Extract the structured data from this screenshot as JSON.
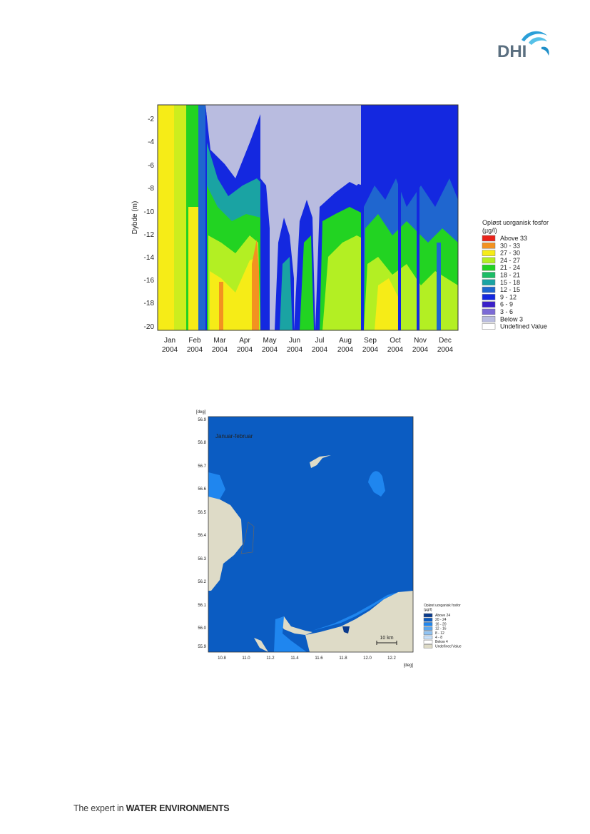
{
  "logo": {
    "text": "DHI"
  },
  "footer": {
    "prefix": "The expert in",
    "emphasis": "WATER ENVIRONMENTS"
  },
  "figure1": {
    "ylabel": "Dybde (m)",
    "yticks": [
      "-2",
      "-4",
      "-6",
      "-8",
      "-10",
      "-12",
      "-14",
      "-16",
      "-18",
      "-20"
    ],
    "months": [
      "Jan",
      "Feb",
      "Mar",
      "Apr",
      "May",
      "Jun",
      "Jul",
      "Aug",
      "Sep",
      "Oct",
      "Nov",
      "Dec"
    ],
    "year": "2004",
    "legend": {
      "title_line1": "Opløst uorganisk fosfor",
      "title_line2": "(µg/l)",
      "items": [
        {
          "label": "Above 33",
          "color": "#e8231b"
        },
        {
          "label": "30 - 33",
          "color": "#f39220"
        },
        {
          "label": "27 - 30",
          "color": "#f6ec17"
        },
        {
          "label": "24 - 27",
          "color": "#b3ef23"
        },
        {
          "label": "21 - 24",
          "color": "#22d322"
        },
        {
          "label": "18 - 21",
          "color": "#1cbd66"
        },
        {
          "label": "15 - 18",
          "color": "#1aa3a3"
        },
        {
          "label": "12 - 15",
          "color": "#1f66cf"
        },
        {
          "label": "9 - 12",
          "color": "#1428e0"
        },
        {
          "label": "6 - 9",
          "color": "#3a20c8"
        },
        {
          "label": "3 - 6",
          "color": "#7b6ad6"
        },
        {
          "label": "Below 3",
          "color": "#b9bce0"
        },
        {
          "label": "Undefined Value",
          "color": "#ffffff"
        }
      ]
    }
  },
  "figure2": {
    "title": "Januar-februar",
    "unit_top": "[deg]",
    "unit_bottom": "[deg]",
    "yticks": [
      "56.9",
      "56.8",
      "56.7",
      "56.6",
      "56.5",
      "56.4",
      "56.3",
      "56.2",
      "56.1",
      "56.0",
      "55.9"
    ],
    "xticks": [
      "10.8",
      "11.0",
      "11.2",
      "11.4",
      "11.6",
      "11.8",
      "12.0",
      "12.2"
    ],
    "scalebar": "10 km",
    "legend": {
      "title_line1": "Opløst uorganisk fosfor",
      "title_line2": "(µg/l)",
      "items": [
        {
          "label": "Above 24",
          "color": "#0a3a8c"
        },
        {
          "label": "20 - 24",
          "color": "#0b5cc2"
        },
        {
          "label": "16 - 20",
          "color": "#1f86ef"
        },
        {
          "label": "12 - 16",
          "color": "#5aa6ee"
        },
        {
          "label": "8 - 12",
          "color": "#8fc3f3"
        },
        {
          "label": "4 - 8",
          "color": "#c7e0fa"
        },
        {
          "label": "Below 4",
          "color": "#ffffff"
        },
        {
          "label": "Undefined Value",
          "color": "#dedbc7"
        }
      ]
    }
  }
}
